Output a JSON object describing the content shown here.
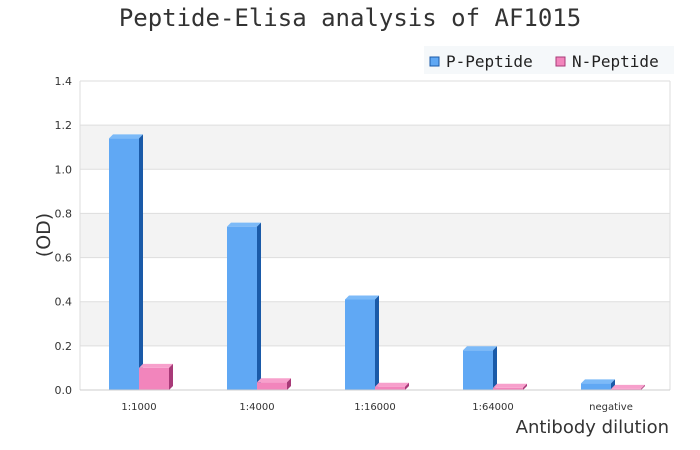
{
  "chart_data": {
    "type": "bar",
    "title": "Peptide-Elisa analysis of AF1015",
    "xlabel": "Antibody dilution",
    "ylabel": "(OD)",
    "categories": [
      "1:1000",
      "1:4000",
      "1:16000",
      "1:64000",
      "negative"
    ],
    "series": [
      {
        "name": "P-Peptide",
        "color": "#60a8f4",
        "values": [
          1.14,
          0.74,
          0.41,
          0.18,
          0.03
        ]
      },
      {
        "name": "N-Peptide",
        "color": "#f285bc",
        "values": [
          0.1,
          0.035,
          0.015,
          0.01,
          0.005
        ]
      }
    ],
    "ylim": [
      0,
      1.4
    ],
    "yticks": [
      "0.0",
      "0.2",
      "0.4",
      "0.6",
      "0.8",
      "1.0",
      "1.2",
      "1.4"
    ],
    "grid": true,
    "legend_position": "top-right"
  }
}
